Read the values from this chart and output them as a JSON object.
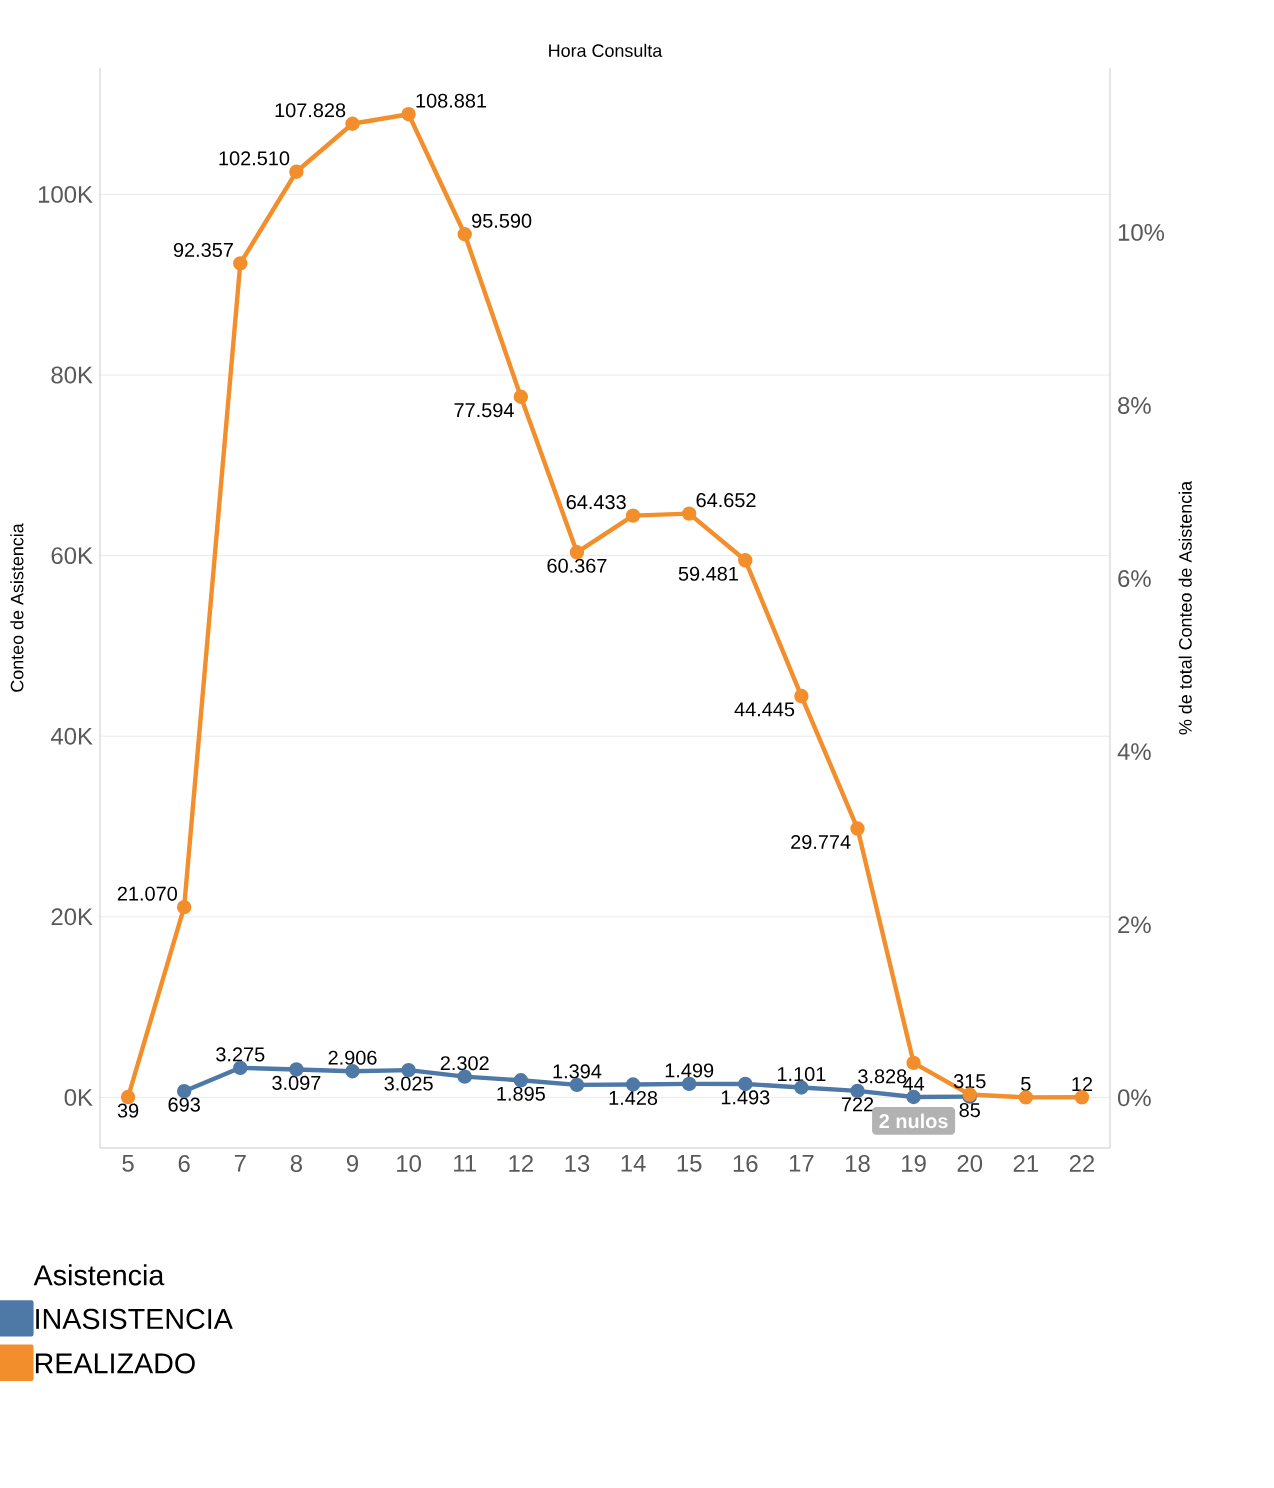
{
  "chart_data": {
    "type": "line",
    "title": "Hora Consulta",
    "categories": [
      "5",
      "6",
      "7",
      "8",
      "9",
      "10",
      "11",
      "12",
      "13",
      "14",
      "15",
      "16",
      "17",
      "18",
      "19",
      "20",
      "21",
      "22"
    ],
    "ylabel": "Conteo de Asistencia",
    "y2label": "% de total Conteo de Asistencia",
    "legend_title": "Asistencia",
    "ylim": [
      -5600,
      114000
    ],
    "yticks": [
      {
        "value": 0,
        "label": "0K"
      },
      {
        "value": 20000,
        "label": "20K"
      },
      {
        "value": 40000,
        "label": "40K"
      },
      {
        "value": 60000,
        "label": "60K"
      },
      {
        "value": 80000,
        "label": "80K"
      },
      {
        "value": 100000,
        "label": "100K"
      }
    ],
    "y2lim": [
      -0.58,
      11.9
    ],
    "y2ticks": [
      {
        "value": 0,
        "label": "0%"
      },
      {
        "value": 2,
        "label": "2%"
      },
      {
        "value": 4,
        "label": "4%"
      },
      {
        "value": 6,
        "label": "6%"
      },
      {
        "value": 8,
        "label": "8%"
      },
      {
        "value": 10,
        "label": "10%"
      }
    ],
    "series": [
      {
        "name": "INASISTENCIA",
        "color": "#4e79a7",
        "values": [
          null,
          693,
          3275,
          3097,
          2906,
          3025,
          2302,
          1895,
          1394,
          1428,
          1499,
          1493,
          1101,
          722,
          44,
          85,
          null,
          null
        ],
        "value_labels": [
          null,
          "693",
          "3.275",
          "3.097",
          "2.906",
          "3.025",
          "2.302",
          "1.895",
          "1.394",
          "1.428",
          "1.499",
          "1.493",
          "1.101",
          "722",
          "44",
          "85",
          null,
          null
        ]
      },
      {
        "name": "REALIZADO",
        "color": "#f28e2b",
        "values": [
          39,
          21070,
          92357,
          102510,
          107828,
          108881,
          95590,
          77594,
          60367,
          64433,
          64652,
          59481,
          44445,
          29774,
          3828,
          315,
          5,
          12
        ],
        "value_labels": [
          "39",
          "21.070",
          "92.357",
          "102.510",
          "107.828",
          "108.881",
          "95.590",
          "77.594",
          "60.367",
          "64.433",
          "64.652",
          "59.481",
          "44.445",
          "29.774",
          "3.828",
          "315",
          "5",
          "12"
        ]
      }
    ],
    "annotations": [
      "2 nulos"
    ],
    "grid": "y",
    "legend": "bottom",
    "marker": "circle",
    "line_style": "solid"
  }
}
